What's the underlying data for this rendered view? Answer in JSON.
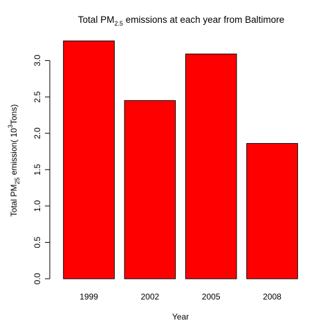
{
  "chart_data": {
    "type": "bar",
    "title": {
      "prefix": "Total PM",
      "subscript": "2.5",
      "suffix": " emissions at each year from Baltimore"
    },
    "xlabel": "Year",
    "ylabel": {
      "prefix": "Total PM",
      "subscript": "25",
      "middle": " emission( 10",
      "superscript": "3",
      "suffix": "Tons)"
    },
    "categories": [
      "1999",
      "2002",
      "2005",
      "2008"
    ],
    "values": [
      3.27,
      2.45,
      3.09,
      1.86
    ],
    "ylim": [
      0,
      3.3
    ],
    "yticks": [
      0.0,
      0.5,
      1.0,
      1.5,
      2.0,
      2.5,
      3.0
    ],
    "ytick_labels": [
      "0.0",
      "0.5",
      "1.0",
      "1.5",
      "2.0",
      "2.5",
      "3.0"
    ],
    "bar_color": "#ff0000",
    "bar_edge_color": "#000000",
    "grid": false,
    "legend": "none"
  }
}
